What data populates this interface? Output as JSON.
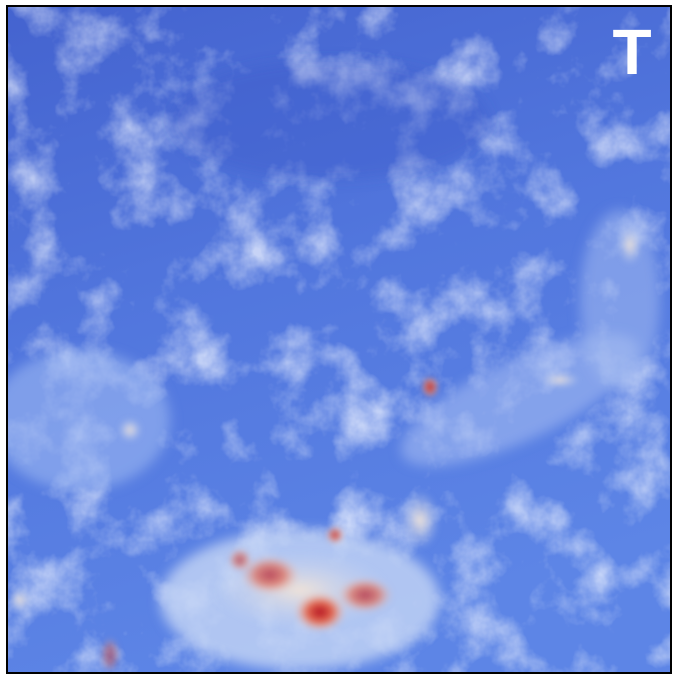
{
  "panel": {
    "label": "T"
  }
}
